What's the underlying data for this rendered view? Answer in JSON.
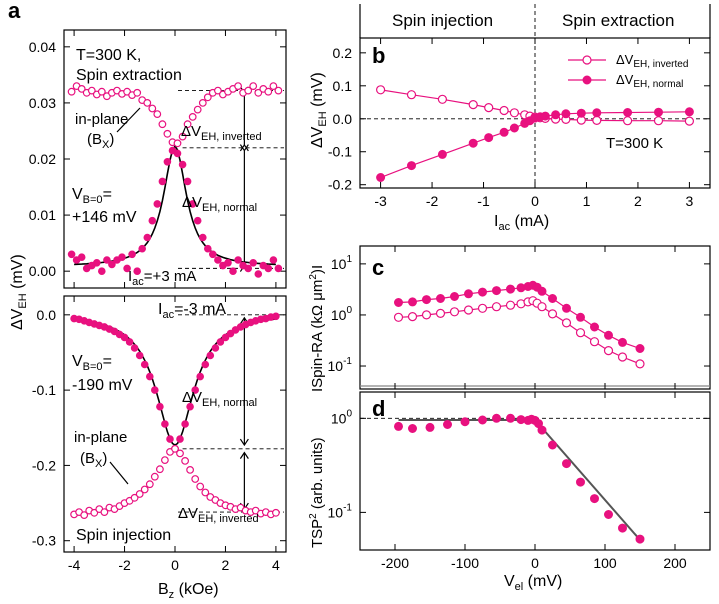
{
  "panel_labels": {
    "a": "a",
    "b": "b",
    "c": "c",
    "d": "d"
  },
  "colors": {
    "magenta": "#e8117f",
    "black": "#000000"
  },
  "chart_data": [
    {
      "id": "a-top",
      "type": "scatter",
      "title": "",
      "xlabel": "",
      "ylabel": "",
      "xlim": [
        -4.4,
        4.4
      ],
      "ylim": [
        -0.003,
        0.043
      ],
      "xticks": [
        -4,
        -2,
        0,
        2,
        4
      ],
      "yticks": [
        0.0,
        0.01,
        0.02,
        0.03,
        0.04
      ],
      "ytick_labels": [
        "0.00",
        "0.01",
        "0.02",
        "0.03",
        "0.04"
      ],
      "annotations": {
        "temp": "T=300 K,",
        "mode": "Spin extraction",
        "inplane1": "in-plane",
        "inplane2": "(B",
        "inplane_sub": "X",
        "inplane3": ")",
        "vb_main": "V",
        "vb_sub": "B=0",
        "vb_eq": "=",
        "vb_value": "+146 mV",
        "dv_inv_main": "ΔV",
        "dv_inv_sub": "EH, inverted",
        "dv_norm_main": "ΔV",
        "dv_norm_sub": "EH, normal",
        "iac_main": "I",
        "iac_sub": "ac",
        "iac_value": "=+3 mA"
      },
      "series": [
        {
          "name": "inverted (open)",
          "marker": "open",
          "x": [
            -4.1,
            -3.9,
            -3.7,
            -3.5,
            -3.3,
            -3.1,
            -2.9,
            -2.7,
            -2.5,
            -2.3,
            -2.1,
            -1.9,
            -1.7,
            -1.5,
            -1.3,
            -1.1,
            -0.9,
            -0.7,
            -0.5,
            -0.3,
            -0.1,
            0.1,
            0.3,
            0.5,
            0.7,
            0.9,
            1.1,
            1.3,
            1.5,
            1.7,
            1.9,
            2.1,
            2.3,
            2.5,
            2.7,
            2.9,
            3.1,
            3.3,
            3.5,
            3.7,
            3.9,
            4.1
          ],
          "y": [
            0.032,
            0.033,
            0.0325,
            0.0318,
            0.0322,
            0.0315,
            0.032,
            0.0312,
            0.0318,
            0.0322,
            0.0316,
            0.032,
            0.0314,
            0.0318,
            0.0305,
            0.03,
            0.029,
            0.028,
            0.0262,
            0.0245,
            0.023,
            0.0228,
            0.024,
            0.0262,
            0.0275,
            0.0288,
            0.03,
            0.031,
            0.0318,
            0.0322,
            0.0315,
            0.032,
            0.0325,
            0.033,
            0.0318,
            0.0322,
            0.033,
            0.0318,
            0.0325,
            0.032,
            0.033,
            0.0322
          ]
        },
        {
          "name": "normal (filled)",
          "marker": "filled",
          "x": [
            -4.1,
            -3.9,
            -3.7,
            -3.5,
            -3.3,
            -3.1,
            -2.9,
            -2.7,
            -2.5,
            -2.3,
            -2.1,
            -1.9,
            -1.7,
            -1.5,
            -1.3,
            -1.1,
            -0.9,
            -0.7,
            -0.5,
            -0.3,
            -0.1,
            0.1,
            0.3,
            0.5,
            0.7,
            0.9,
            1.1,
            1.3,
            1.5,
            1.7,
            1.9,
            2.1,
            2.3,
            2.5,
            2.7,
            2.9,
            3.1,
            3.3,
            3.5,
            3.7,
            3.9,
            4.1
          ],
          "y": [
            0.003,
            0.002,
            0.0025,
            0.0005,
            0.001,
            0.0015,
            0.0,
            0.002,
            0.0012,
            0.002,
            0.0025,
            0.0005,
            0.003,
            0.0,
            0.004,
            0.006,
            0.009,
            0.012,
            0.016,
            0.0195,
            0.0215,
            0.021,
            0.019,
            0.016,
            0.012,
            0.009,
            0.006,
            0.004,
            0.003,
            0.002,
            0.001,
            0.0015,
            0.0,
            0.002,
            0.001,
            0.0005,
            0.0015,
            -0.0005,
            0.001,
            0.0005,
            0.002,
            0.0005
          ]
        }
      ]
    },
    {
      "id": "a-bottom",
      "type": "scatter",
      "title": "",
      "xlabel": "B_z (kOe)",
      "ylabel": "ΔV_EH (mV)",
      "xlim": [
        -4.4,
        4.4
      ],
      "ylim": [
        -0.315,
        0.025
      ],
      "xticks": [
        -4,
        -2,
        0,
        2,
        4
      ],
      "xtick_labels": [
        "-4",
        "-2",
        "0",
        "2",
        "4"
      ],
      "yticks": [
        0.0,
        -0.1,
        -0.2,
        -0.3
      ],
      "ytick_labels": [
        "0.0",
        "-0.1",
        "-0.2",
        "-0.3"
      ],
      "annotations": {
        "iac_main": "I",
        "iac_sub": "ac",
        "iac_value": "=-3 mA",
        "vb_main": "V",
        "vb_sub": "B=0",
        "vb_eq": "=",
        "vb_value": "-190 mV",
        "dv_norm_main": "ΔV",
        "dv_norm_sub": "EH, normal",
        "inplane1": "in-plane",
        "inplane2": "(B",
        "inplane_sub": "X",
        "inplane3": ")",
        "dv_inv_main": "ΔV",
        "dv_inv_sub": "EH, inverted",
        "mode": "Spin injection",
        "ylabel_main": "ΔV",
        "ylabel_sub": "EH",
        "ylabel_unit": " (mV)",
        "xlabel_main": "B",
        "xlabel_sub": "z",
        "xlabel_unit": " (kOe)"
      },
      "series": [
        {
          "name": "normal (filled)",
          "marker": "filled",
          "x": [
            -4.0,
            -3.8,
            -3.6,
            -3.4,
            -3.2,
            -3.0,
            -2.8,
            -2.6,
            -2.4,
            -2.2,
            -2.0,
            -1.8,
            -1.6,
            -1.4,
            -1.2,
            -1.0,
            -0.8,
            -0.6,
            -0.4,
            -0.2,
            0.0,
            0.2,
            0.4,
            0.6,
            0.8,
            1.0,
            1.2,
            1.4,
            1.6,
            1.8,
            2.0,
            2.2,
            2.4,
            2.6,
            2.8,
            3.0,
            3.2,
            3.4,
            3.6,
            3.8,
            4.0
          ],
          "y": [
            -0.005,
            -0.006,
            -0.008,
            -0.01,
            -0.012,
            -0.014,
            -0.016,
            -0.019,
            -0.022,
            -0.026,
            -0.03,
            -0.036,
            -0.044,
            -0.054,
            -0.066,
            -0.082,
            -0.1,
            -0.122,
            -0.145,
            -0.165,
            -0.178,
            -0.165,
            -0.145,
            -0.122,
            -0.1,
            -0.082,
            -0.066,
            -0.054,
            -0.044,
            -0.036,
            -0.03,
            -0.025,
            -0.02,
            -0.016,
            -0.013,
            -0.01,
            -0.008,
            -0.006,
            -0.005,
            -0.003,
            -0.002
          ]
        },
        {
          "name": "inverted (open)",
          "marker": "open",
          "x": [
            -4.0,
            -3.8,
            -3.6,
            -3.4,
            -3.2,
            -3.0,
            -2.8,
            -2.6,
            -2.4,
            -2.2,
            -2.0,
            -1.8,
            -1.6,
            -1.4,
            -1.2,
            -1.0,
            -0.8,
            -0.6,
            -0.4,
            -0.2,
            0.0,
            0.2,
            0.4,
            0.6,
            0.8,
            1.0,
            1.2,
            1.4,
            1.6,
            1.8,
            2.0,
            2.2,
            2.4,
            2.6,
            2.8,
            3.0,
            3.2,
            3.4,
            3.6,
            3.8,
            4.0
          ],
          "y": [
            -0.265,
            -0.262,
            -0.266,
            -0.26,
            -0.263,
            -0.258,
            -0.262,
            -0.256,
            -0.258,
            -0.254,
            -0.25,
            -0.247,
            -0.243,
            -0.238,
            -0.232,
            -0.225,
            -0.215,
            -0.205,
            -0.193,
            -0.182,
            -0.178,
            -0.184,
            -0.194,
            -0.206,
            -0.218,
            -0.228,
            -0.236,
            -0.242,
            -0.246,
            -0.25,
            -0.253,
            -0.255,
            -0.258,
            -0.256,
            -0.26,
            -0.262,
            -0.26,
            -0.264,
            -0.262,
            -0.265,
            -0.263
          ]
        }
      ]
    },
    {
      "id": "b",
      "type": "line",
      "title_left": "Spin injection",
      "title_right": "Spin extraction",
      "xlabel_main": "I",
      "xlabel_sub": "ac",
      "xlabel_unit": " (mA)",
      "ylabel_main": "ΔV",
      "ylabel_sub": "EH",
      "ylabel_unit": " (mV)",
      "xlim": [
        -3.4,
        3.4
      ],
      "ylim": [
        -0.21,
        0.245
      ],
      "xticks": [
        -3,
        -2,
        -1,
        0,
        1,
        2,
        3
      ],
      "xtick_labels": [
        "-3",
        "-2",
        "-1",
        "0",
        "1",
        "2",
        "3"
      ],
      "yticks": [
        -0.2,
        -0.1,
        0.0,
        0.1,
        0.2
      ],
      "ytick_labels": [
        "-0.2",
        "-0.1",
        "0.0",
        "0.1",
        "0.2"
      ],
      "annotation": "T=300 K",
      "legend": [
        {
          "main": "ΔV",
          "sub": "EH, inverted",
          "marker": "open"
        },
        {
          "main": "ΔV",
          "sub": "EH, normal",
          "marker": "filled"
        }
      ],
      "series": [
        {
          "name": "ΔV_EH, inverted",
          "marker": "open",
          "x": [
            -3,
            -2.4,
            -1.8,
            -1.2,
            -0.9,
            -0.6,
            -0.4,
            -0.2,
            -0.1,
            0,
            0.1,
            0.2,
            0.4,
            0.6,
            0.9,
            1.2,
            1.8,
            2.4,
            3
          ],
          "y": [
            0.088,
            0.073,
            0.059,
            0.043,
            0.034,
            0.025,
            0.018,
            0.012,
            0.008,
            0.005,
            0.003,
            0.001,
            -0.001,
            -0.002,
            -0.004,
            -0.005,
            -0.006,
            -0.006,
            -0.007
          ]
        },
        {
          "name": "ΔV_EH, normal",
          "marker": "filled",
          "x": [
            -3,
            -2.4,
            -1.8,
            -1.2,
            -0.9,
            -0.6,
            -0.4,
            -0.2,
            -0.1,
            0,
            0.1,
            0.2,
            0.4,
            0.6,
            0.9,
            1.2,
            1.8,
            2.4,
            3
          ],
          "y": [
            -0.178,
            -0.142,
            -0.108,
            -0.074,
            -0.057,
            -0.041,
            -0.028,
            -0.014,
            -0.006,
            0.002,
            0.006,
            0.008,
            0.012,
            0.015,
            0.017,
            0.018,
            0.019,
            0.02,
            0.021
          ]
        }
      ]
    },
    {
      "id": "c",
      "type": "line",
      "yscale": "log",
      "ylabel": "ISpin-RA (kΩ μm²)I",
      "ylabel_pre": "ISpin-RA (kΩ μm",
      "ylabel_sup": "2",
      "ylabel_post": ")I",
      "xlim": [
        -250,
        250
      ],
      "ylim_log10": [
        -1.45,
        1.35
      ],
      "yticks_log10": [
        -1,
        0,
        1
      ],
      "ytick_base": "10",
      "ytick_exps": [
        "-1",
        "0",
        "1"
      ],
      "series": [
        {
          "name": "normal",
          "marker": "filled",
          "x": [
            -195,
            -175,
            -155,
            -135,
            -115,
            -95,
            -75,
            -55,
            -35,
            -20,
            -10,
            -3,
            3,
            10,
            25,
            45,
            65,
            85,
            105,
            125,
            150
          ],
          "y": [
            1.75,
            1.8,
            2.0,
            2.1,
            2.3,
            2.6,
            2.8,
            3.0,
            3.2,
            3.4,
            3.6,
            3.8,
            3.5,
            2.9,
            2.1,
            1.35,
            0.9,
            0.58,
            0.4,
            0.29,
            0.22
          ]
        },
        {
          "name": "inverted",
          "marker": "open",
          "x": [
            -195,
            -175,
            -155,
            -135,
            -115,
            -95,
            -75,
            -55,
            -35,
            -20,
            -10,
            -3,
            3,
            10,
            25,
            45,
            65,
            85,
            105,
            125,
            150
          ],
          "y": [
            0.9,
            0.93,
            1.0,
            1.07,
            1.15,
            1.25,
            1.35,
            1.45,
            1.55,
            1.65,
            1.8,
            1.9,
            1.7,
            1.45,
            1.05,
            0.7,
            0.45,
            0.3,
            0.2,
            0.15,
            0.11
          ]
        }
      ]
    },
    {
      "id": "d",
      "type": "scatter",
      "yscale": "log",
      "ylabel_main": "TSP",
      "ylabel_sup": "2",
      "ylabel_unit": " (arb. units)",
      "xlabel_main": "V",
      "xlabel_sub": "el",
      "xlabel_unit": " (mV)",
      "xlim": [
        -250,
        250
      ],
      "ylim_log10": [
        -1.4,
        0.28
      ],
      "xticks": [
        -200,
        -100,
        0,
        100,
        200
      ],
      "xtick_labels": [
        "-200",
        "-100",
        "0",
        "100",
        "200"
      ],
      "yticks_log10": [
        -1,
        0
      ],
      "ytick_base": "10",
      "ytick_exps": [
        "-1",
        "0"
      ],
      "series": [
        {
          "name": "TSP^2",
          "marker": "filled",
          "x": [
            -195,
            -175,
            -150,
            -125,
            -100,
            -75,
            -55,
            -35,
            -20,
            -10,
            -5,
            0,
            5,
            10,
            25,
            45,
            65,
            85,
            105,
            125,
            150
          ],
          "y": [
            0.82,
            0.78,
            0.8,
            0.86,
            0.92,
            0.96,
            1.0,
            1.0,
            0.97,
            0.95,
            0.98,
            0.95,
            0.88,
            0.75,
            0.52,
            0.33,
            0.21,
            0.14,
            0.095,
            0.068,
            0.052
          ]
        },
        {
          "name": "fit",
          "type": "line",
          "x": [
            -195,
            0,
            150
          ],
          "y": [
            0.96,
            0.96,
            0.051
          ]
        }
      ]
    }
  ]
}
